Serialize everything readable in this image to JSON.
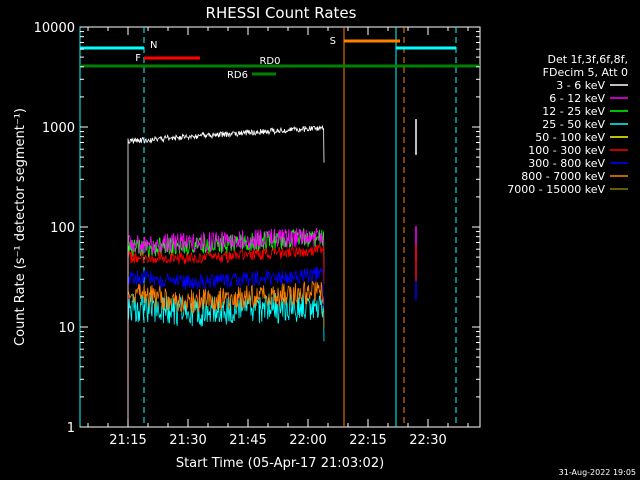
{
  "chart_data": {
    "type": "line",
    "title": "RHESSI Count Rates",
    "xlabel": "Start Time (05-Apr-17 21:03:02)",
    "ylabel": "Count Rate (s⁻¹ detector segment⁻¹)",
    "yscale": "log",
    "ylim": [
      1,
      10000
    ],
    "xlim": [
      "21:03",
      "22:43"
    ],
    "x_ticks": [
      "21:15",
      "21:30",
      "21:45",
      "22:00",
      "22:15",
      "22:30"
    ],
    "y_ticks": [
      "1",
      "10",
      "100",
      "1000",
      "10000"
    ],
    "footer": "31-Aug-2022 19:05",
    "legend": {
      "header": [
        "Det 1f,3f,6f,8f,",
        "FDecim 5, Att 0"
      ],
      "placement": "right"
    },
    "series": [
      {
        "name": "3 - 6 keV",
        "color": "#ffffff",
        "t": [
          "21:15",
          "21:30",
          "21:45",
          "22:00",
          "22:04",
          "22:27"
        ],
        "values": [
          720,
          800,
          880,
          960,
          980,
          1000
        ]
      },
      {
        "name": "6 - 12 keV",
        "color": "#ff00ff",
        "t": [
          "21:15",
          "21:30",
          "21:45",
          "22:00",
          "22:04",
          "22:27"
        ],
        "values": [
          65,
          70,
          75,
          78,
          80,
          85
        ]
      },
      {
        "name": "12 - 25 keV",
        "color": "#00ff00",
        "t": [
          "21:15",
          "21:30",
          "21:45",
          "22:00",
          "22:04"
        ],
        "values": [
          60,
          65,
          70,
          78,
          80
        ]
      },
      {
        "name": "25 - 50 keV",
        "color": "#00ffff",
        "t": [
          "21:15",
          "21:30",
          "21:45",
          "22:00",
          "22:04"
        ],
        "values": [
          16,
          14,
          15,
          16,
          16
        ]
      },
      {
        "name": "50 - 100 keV",
        "color": "#ffff00",
        "t": [],
        "values": []
      },
      {
        "name": "100 - 300 keV",
        "color": "#ff0000",
        "t": [
          "21:15",
          "21:30",
          "21:45",
          "22:00",
          "22:04",
          "22:27"
        ],
        "values": [
          50,
          48,
          52,
          58,
          60,
          55
        ]
      },
      {
        "name": "300 - 800 keV",
        "color": "#0000ff",
        "t": [
          "21:15",
          "21:30",
          "21:45",
          "22:00",
          "22:04",
          "22:27"
        ],
        "values": [
          32,
          28,
          30,
          33,
          34,
          35
        ]
      },
      {
        "name": "800 - 7000 keV",
        "color": "#ff8000",
        "t": [
          "21:15",
          "21:30",
          "21:45",
          "22:00",
          "22:04"
        ],
        "values": [
          22,
          18,
          20,
          22,
          22
        ]
      },
      {
        "name": "7000 - 15000 keV",
        "color": "#808000",
        "t": [],
        "values": []
      }
    ],
    "attenuator_state_bars": [
      {
        "label": "N",
        "color": "#00ffff",
        "start": "21:03",
        "end": "21:19"
      },
      {
        "label": "",
        "color": "#00ffff",
        "start": "22:22",
        "end": "22:37"
      },
      {
        "label": "F",
        "color": "#ff0000",
        "start": "21:19",
        "end": "21:33"
      },
      {
        "label": "S",
        "color": "#ff8000",
        "start": "22:09",
        "end": "22:23"
      },
      {
        "label": "RD0",
        "color": "#008000",
        "start": "21:03",
        "end": "22:43"
      },
      {
        "label": "RD6",
        "color": "#008000",
        "start": "21:46",
        "end": "21:52"
      }
    ],
    "vertical_markers": [
      {
        "time": "21:03",
        "color": "#00ffff",
        "style": "solid"
      },
      {
        "time": "21:19",
        "color": "#00ffff",
        "style": "dashed"
      },
      {
        "time": "22:09",
        "color": "#ff8000",
        "style": "solid"
      },
      {
        "time": "22:22",
        "color": "#00ffff",
        "style": "solid"
      },
      {
        "time": "22:24",
        "color": "#ff8000",
        "style": "dashed"
      },
      {
        "time": "22:37",
        "color": "#00ffff",
        "style": "dashed"
      }
    ]
  }
}
